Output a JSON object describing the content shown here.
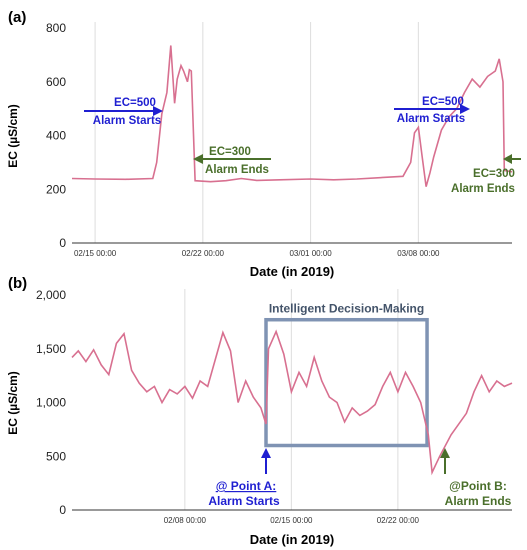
{
  "chart_data": [
    {
      "panel_label": "(a)",
      "type": "line",
      "xlabel": "Date (in 2019)",
      "ylabel": "EC (µS/cm)",
      "ylim": [
        0,
        800
      ],
      "yticks": [
        {
          "value": 0,
          "label": "0"
        },
        {
          "value": 200,
          "label": "200"
        },
        {
          "value": 400,
          "label": "400"
        },
        {
          "value": 600,
          "label": "600"
        },
        {
          "value": 800,
          "label": "800"
        }
      ],
      "xlim": [
        "2019-02-13T12:00",
        "2019-03-14T02:00"
      ],
      "xticks": [
        {
          "value": "2019-02-15T00:00",
          "label": "02/15 00:00"
        },
        {
          "value": "2019-02-22T00:00",
          "label": "02/22 00:00"
        },
        {
          "value": "2019-03-01T00:00",
          "label": "03/01 00:00"
        },
        {
          "value": "2019-03-08T00:00",
          "label": "03/08 00:00"
        }
      ],
      "grid": "vertical",
      "series_color": "#d87090",
      "series": [
        {
          "points": [
            [
              "2019-02-13T12:00",
              240
            ],
            [
              "2019-02-15T00:00",
              238
            ],
            [
              "2019-02-17T00:00",
              237
            ],
            [
              "2019-02-18T18:00",
              240
            ],
            [
              "2019-02-19T00:00",
              300
            ],
            [
              "2019-02-19T08:00",
              480
            ],
            [
              "2019-02-19T16:00",
              560
            ],
            [
              "2019-02-19T22:00",
              735
            ],
            [
              "2019-02-20T04:00",
              520
            ],
            [
              "2019-02-20T08:00",
              610
            ],
            [
              "2019-02-20T14:00",
              660
            ],
            [
              "2019-02-20T18:00",
              640
            ],
            [
              "2019-02-21T00:00",
              600
            ],
            [
              "2019-02-21T03:00",
              645
            ],
            [
              "2019-02-21T06:00",
              640
            ],
            [
              "2019-02-21T12:00",
              232
            ],
            [
              "2019-02-22T12:00",
              228
            ],
            [
              "2019-02-23T12:00",
              232
            ],
            [
              "2019-02-24T12:00",
              240
            ],
            [
              "2019-02-25T12:00",
              233
            ],
            [
              "2019-02-27T00:00",
              235
            ],
            [
              "2019-03-01T00:00",
              238
            ],
            [
              "2019-03-02T12:00",
              235
            ],
            [
              "2019-03-04T00:00",
              238
            ],
            [
              "2019-03-06T00:00",
              245
            ],
            [
              "2019-03-07T00:00",
              248
            ],
            [
              "2019-03-07T12:00",
              300
            ],
            [
              "2019-03-07T18:00",
              410
            ],
            [
              "2019-03-08T00:00",
              430
            ],
            [
              "2019-03-08T06:00",
              320
            ],
            [
              "2019-03-08T12:00",
              210
            ],
            [
              "2019-03-08T18:00",
              260
            ],
            [
              "2019-03-09T00:00",
              320
            ],
            [
              "2019-03-09T12:00",
              420
            ],
            [
              "2019-03-10T00:00",
              470
            ],
            [
              "2019-03-10T12:00",
              500
            ],
            [
              "2019-03-11T00:00",
              560
            ],
            [
              "2019-03-11T12:00",
              610
            ],
            [
              "2019-03-12T00:00",
              580
            ],
            [
              "2019-03-12T12:00",
              620
            ],
            [
              "2019-03-13T00:00",
              640
            ],
            [
              "2019-03-13T06:00",
              685
            ],
            [
              "2019-03-13T12:00",
              600
            ],
            [
              "2019-03-13T14:00",
              270
            ],
            [
              "2019-03-14T02:00",
              265
            ]
          ]
        }
      ],
      "annotations": [
        {
          "lines": [
            "EC=500",
            "Alarm Starts"
          ],
          "color": "#1f1fd1",
          "arrow": "right"
        },
        {
          "lines": [
            "EC=300",
            "Alarm Ends"
          ],
          "color": "#4a6f2b",
          "arrow": "left"
        },
        {
          "lines": [
            "EC=500",
            "Alarm Starts"
          ],
          "color": "#1f1fd1",
          "arrow": "right"
        },
        {
          "lines": [
            "EC=300",
            "Alarm Ends"
          ],
          "color": "#4a6f2b",
          "arrow": "left"
        }
      ]
    },
    {
      "panel_label": "(b)",
      "type": "line",
      "xlabel": "Date (in 2019)",
      "ylabel": "EC (µS/cm)",
      "ylim": [
        0,
        2000
      ],
      "yticks": [
        {
          "value": 0,
          "label": "0"
        },
        {
          "value": 500,
          "label": "500"
        },
        {
          "value": 1000,
          "label": "1,000"
        },
        {
          "value": 1500,
          "label": "1,500"
        },
        {
          "value": 2000,
          "label": "2,000"
        }
      ],
      "xlim": [
        "2019-01-31T14:00",
        "2019-03-01T12:00"
      ],
      "xticks": [
        {
          "value": "2019-02-08T00:00",
          "label": "02/08 00:00"
        },
        {
          "value": "2019-02-15T00:00",
          "label": "02/15 00:00"
        },
        {
          "value": "2019-02-22T00:00",
          "label": "02/22 00:00"
        }
      ],
      "grid": "vertical",
      "series_color": "#d87090",
      "series": [
        {
          "points": [
            [
              "2019-01-31T14:00",
              1420
            ],
            [
              "2019-02-01T00:00",
              1480
            ],
            [
              "2019-02-01T12:00",
              1380
            ],
            [
              "2019-02-02T00:00",
              1490
            ],
            [
              "2019-02-02T12:00",
              1350
            ],
            [
              "2019-02-03T00:00",
              1260
            ],
            [
              "2019-02-03T12:00",
              1550
            ],
            [
              "2019-02-04T00:00",
              1640
            ],
            [
              "2019-02-04T12:00",
              1300
            ],
            [
              "2019-02-05T00:00",
              1180
            ],
            [
              "2019-02-05T12:00",
              1100
            ],
            [
              "2019-02-06T00:00",
              1150
            ],
            [
              "2019-02-06T12:00",
              1000
            ],
            [
              "2019-02-07T00:00",
              1120
            ],
            [
              "2019-02-07T12:00",
              1080
            ],
            [
              "2019-02-08T00:00",
              1150
            ],
            [
              "2019-02-08T12:00",
              1040
            ],
            [
              "2019-02-09T00:00",
              1200
            ],
            [
              "2019-02-09T12:00",
              1150
            ],
            [
              "2019-02-10T00:00",
              1400
            ],
            [
              "2019-02-10T12:00",
              1650
            ],
            [
              "2019-02-11T00:00",
              1480
            ],
            [
              "2019-02-11T12:00",
              1000
            ],
            [
              "2019-02-12T00:00",
              1200
            ],
            [
              "2019-02-12T12:00",
              1050
            ],
            [
              "2019-02-13T00:00",
              950
            ],
            [
              "2019-02-13T08:00",
              800
            ],
            [
              "2019-02-13T12:00",
              1500
            ],
            [
              "2019-02-14T00:00",
              1660
            ],
            [
              "2019-02-14T12:00",
              1450
            ],
            [
              "2019-02-15T00:00",
              1100
            ],
            [
              "2019-02-15T12:00",
              1280
            ],
            [
              "2019-02-16T00:00",
              1150
            ],
            [
              "2019-02-16T12:00",
              1420
            ],
            [
              "2019-02-17T00:00",
              1200
            ],
            [
              "2019-02-17T12:00",
              1050
            ],
            [
              "2019-02-18T00:00",
              1000
            ],
            [
              "2019-02-18T12:00",
              820
            ],
            [
              "2019-02-19T00:00",
              950
            ],
            [
              "2019-02-19T12:00",
              880
            ],
            [
              "2019-02-20T00:00",
              920
            ],
            [
              "2019-02-20T12:00",
              980
            ],
            [
              "2019-02-21T00:00",
              1150
            ],
            [
              "2019-02-21T12:00",
              1280
            ],
            [
              "2019-02-22T00:00",
              1100
            ],
            [
              "2019-02-22T12:00",
              1280
            ],
            [
              "2019-02-23T00:00",
              1150
            ],
            [
              "2019-02-23T12:00",
              1000
            ],
            [
              "2019-02-24T00:00",
              700
            ],
            [
              "2019-02-24T06:00",
              350
            ],
            [
              "2019-02-24T18:00",
              500
            ],
            [
              "2019-02-25T12:00",
              700
            ],
            [
              "2019-02-26T12:00",
              900
            ],
            [
              "2019-02-27T00:00",
              1100
            ],
            [
              "2019-02-27T12:00",
              1250
            ],
            [
              "2019-02-28T00:00",
              1100
            ],
            [
              "2019-02-28T12:00",
              1200
            ],
            [
              "2019-03-01T00:00",
              1150
            ],
            [
              "2019-03-01T12:00",
              1180
            ]
          ]
        }
      ],
      "decision_box": {
        "label": "Intelligent Decision-Making",
        "x_range": [
          "2019-02-13T08:00",
          "2019-02-23T22:00"
        ],
        "y_range": [
          600,
          1770
        ],
        "color": "#7f93b3"
      },
      "annotations": [
        {
          "lines": [
            "@ Point A:",
            "Alarm Starts"
          ],
          "color": "#1f1fd1",
          "arrow": "up"
        },
        {
          "lines": [
            "@Point B:",
            "Alarm Ends"
          ],
          "color": "#4a6f2b",
          "arrow": "up"
        }
      ]
    }
  ]
}
